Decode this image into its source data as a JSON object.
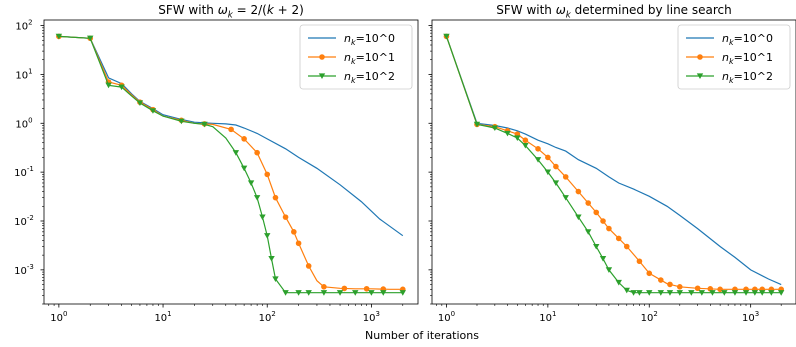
{
  "xlabel": "Number of iterations",
  "colors": {
    "n1": "#1f77b4",
    "n10": "#ff7f0e",
    "n100": "#2ca02c"
  },
  "chart_data": [
    {
      "type": "line",
      "title_parts": [
        "SFW with ",
        "ω",
        "k",
        " = 2/(",
        "k",
        " + 2)"
      ],
      "xscale": "log",
      "yscale": "log",
      "xlim": [
        0.72,
        2800
      ],
      "ylim": [
        0.0002,
        130
      ],
      "legend": {
        "placement": "top-right"
      },
      "series": [
        {
          "name_parts": [
            "n",
            "k",
            "=10^0"
          ],
          "color": "#1f77b4",
          "marker": "none",
          "x": [
            1,
            2,
            3,
            4,
            5,
            6,
            8,
            10,
            15,
            20,
            30,
            40,
            50,
            60,
            80,
            100,
            150,
            200,
            300,
            500,
            800,
            1200,
            2000
          ],
          "y": [
            60,
            55,
            8.5,
            6.5,
            4,
            2.8,
            2,
            1.5,
            1.2,
            1.05,
            1,
            0.97,
            0.92,
            0.8,
            0.62,
            0.48,
            0.3,
            0.2,
            0.12,
            0.055,
            0.025,
            0.011,
            0.005
          ]
        },
        {
          "name_parts": [
            "n",
            "k",
            "=10^1"
          ],
          "color": "#ff7f0e",
          "marker": "circle",
          "x": [
            1,
            2,
            3,
            4,
            5,
            6,
            8,
            10,
            15,
            20,
            30,
            45,
            60,
            80,
            100,
            120,
            150,
            180,
            200,
            250,
            300,
            350,
            500,
            700,
            1000,
            1500,
            2000
          ],
          "y": [
            60,
            55,
            7,
            6,
            3.8,
            2.7,
            1.9,
            1.4,
            1.15,
            1.0,
            0.95,
            0.75,
            0.48,
            0.25,
            0.09,
            0.03,
            0.012,
            0.006,
            0.0035,
            0.0012,
            0.0006,
            0.00045,
            0.00042,
            0.00041,
            0.00041,
            0.0004,
            0.0004
          ],
          "markers_at": [
            1,
            2,
            3,
            4,
            6,
            8,
            15,
            25,
            45,
            60,
            80,
            100,
            120,
            150,
            180,
            200,
            250,
            350,
            550,
            900,
            1300,
            2000
          ]
        },
        {
          "name_parts": [
            "n",
            "k",
            "=10^2"
          ],
          "color": "#2ca02c",
          "marker": "triangle-down",
          "x": [
            1,
            2,
            3,
            4,
            5,
            6,
            8,
            10,
            15,
            20,
            25,
            30,
            40,
            50,
            60,
            70,
            80,
            90,
            100,
            110,
            120,
            150,
            200,
            300,
            500,
            800,
            1000,
            1500,
            2000
          ],
          "y": [
            60,
            55,
            6,
            5.5,
            3.6,
            2.6,
            1.8,
            1.4,
            1.1,
            1.0,
            0.95,
            0.85,
            0.5,
            0.25,
            0.12,
            0.06,
            0.03,
            0.012,
            0.005,
            0.0017,
            0.00065,
            0.00034,
            0.00034,
            0.00034,
            0.00034,
            0.00034,
            0.00034,
            0.00034,
            0.00034
          ],
          "markers_at": [
            1,
            2,
            3,
            4,
            6,
            8,
            15,
            25,
            50,
            60,
            70,
            80,
            90,
            100,
            110,
            120,
            150,
            200,
            250,
            350,
            500,
            700,
            1000,
            1300,
            2000
          ]
        }
      ]
    },
    {
      "type": "line",
      "title_parts": [
        "SFW with ",
        "ω",
        "k",
        " determined by line search"
      ],
      "xscale": "log",
      "yscale": "log",
      "xlim": [
        0.72,
        2800
      ],
      "ylim": [
        0.0002,
        130
      ],
      "legend": {
        "placement": "top-right"
      },
      "series": [
        {
          "name_parts": [
            "n",
            "k",
            "=10^0"
          ],
          "color": "#1f77b4",
          "marker": "none",
          "x": [
            1,
            2,
            3,
            4,
            5,
            6,
            8,
            10,
            12,
            15,
            20,
            30,
            40,
            50,
            70,
            100,
            150,
            200,
            300,
            500,
            700,
            1000,
            1500,
            2000
          ],
          "y": [
            60,
            1.0,
            0.9,
            0.8,
            0.7,
            0.6,
            0.45,
            0.38,
            0.32,
            0.27,
            0.18,
            0.12,
            0.08,
            0.06,
            0.045,
            0.032,
            0.02,
            0.013,
            0.007,
            0.003,
            0.0018,
            0.001,
            0.00065,
            0.0005
          ]
        },
        {
          "name_parts": [
            "n",
            "k",
            "=10^1"
          ],
          "color": "#ff7f0e",
          "marker": "circle",
          "x": [
            1,
            2,
            3,
            4,
            5,
            6,
            8,
            10,
            12,
            15,
            20,
            30,
            40,
            60,
            80,
            100,
            150,
            200,
            300,
            500,
            1000,
            2000
          ],
          "y": [
            60,
            0.95,
            0.85,
            0.7,
            0.6,
            0.45,
            0.3,
            0.2,
            0.13,
            0.08,
            0.04,
            0.015,
            0.007,
            0.003,
            0.0015,
            0.00085,
            0.00052,
            0.00045,
            0.00042,
            0.0004,
            0.0004,
            0.0004
          ],
          "markers_at": [
            1,
            2,
            3,
            4,
            5,
            6,
            8,
            10,
            12,
            15,
            20,
            25,
            30,
            35,
            40,
            50,
            60,
            80,
            100,
            130,
            160,
            200,
            300,
            400,
            500,
            700,
            900,
            1100,
            1300,
            1600,
            2000
          ]
        },
        {
          "name_parts": [
            "n",
            "k",
            "=10^2"
          ],
          "color": "#2ca02c",
          "marker": "triangle-down",
          "x": [
            1,
            2,
            3,
            4,
            5,
            6,
            8,
            10,
            12,
            15,
            20,
            25,
            30,
            35,
            40,
            50,
            60,
            70,
            80,
            100,
            150,
            200,
            300,
            500,
            1000,
            2000
          ],
          "y": [
            60,
            0.95,
            0.8,
            0.62,
            0.5,
            0.35,
            0.18,
            0.1,
            0.06,
            0.03,
            0.012,
            0.006,
            0.003,
            0.0017,
            0.001,
            0.00055,
            0.00038,
            0.00034,
            0.00034,
            0.00034,
            0.00034,
            0.00034,
            0.00034,
            0.00034,
            0.00034,
            0.00034
          ],
          "markers_at": [
            1,
            2,
            3,
            4,
            5,
            6,
            8,
            10,
            12,
            15,
            20,
            25,
            30,
            35,
            40,
            50,
            60,
            70,
            80,
            100,
            130,
            160,
            200,
            260,
            330,
            420,
            550,
            700,
            900,
            1100,
            1300,
            1600,
            2000
          ]
        }
      ]
    }
  ]
}
